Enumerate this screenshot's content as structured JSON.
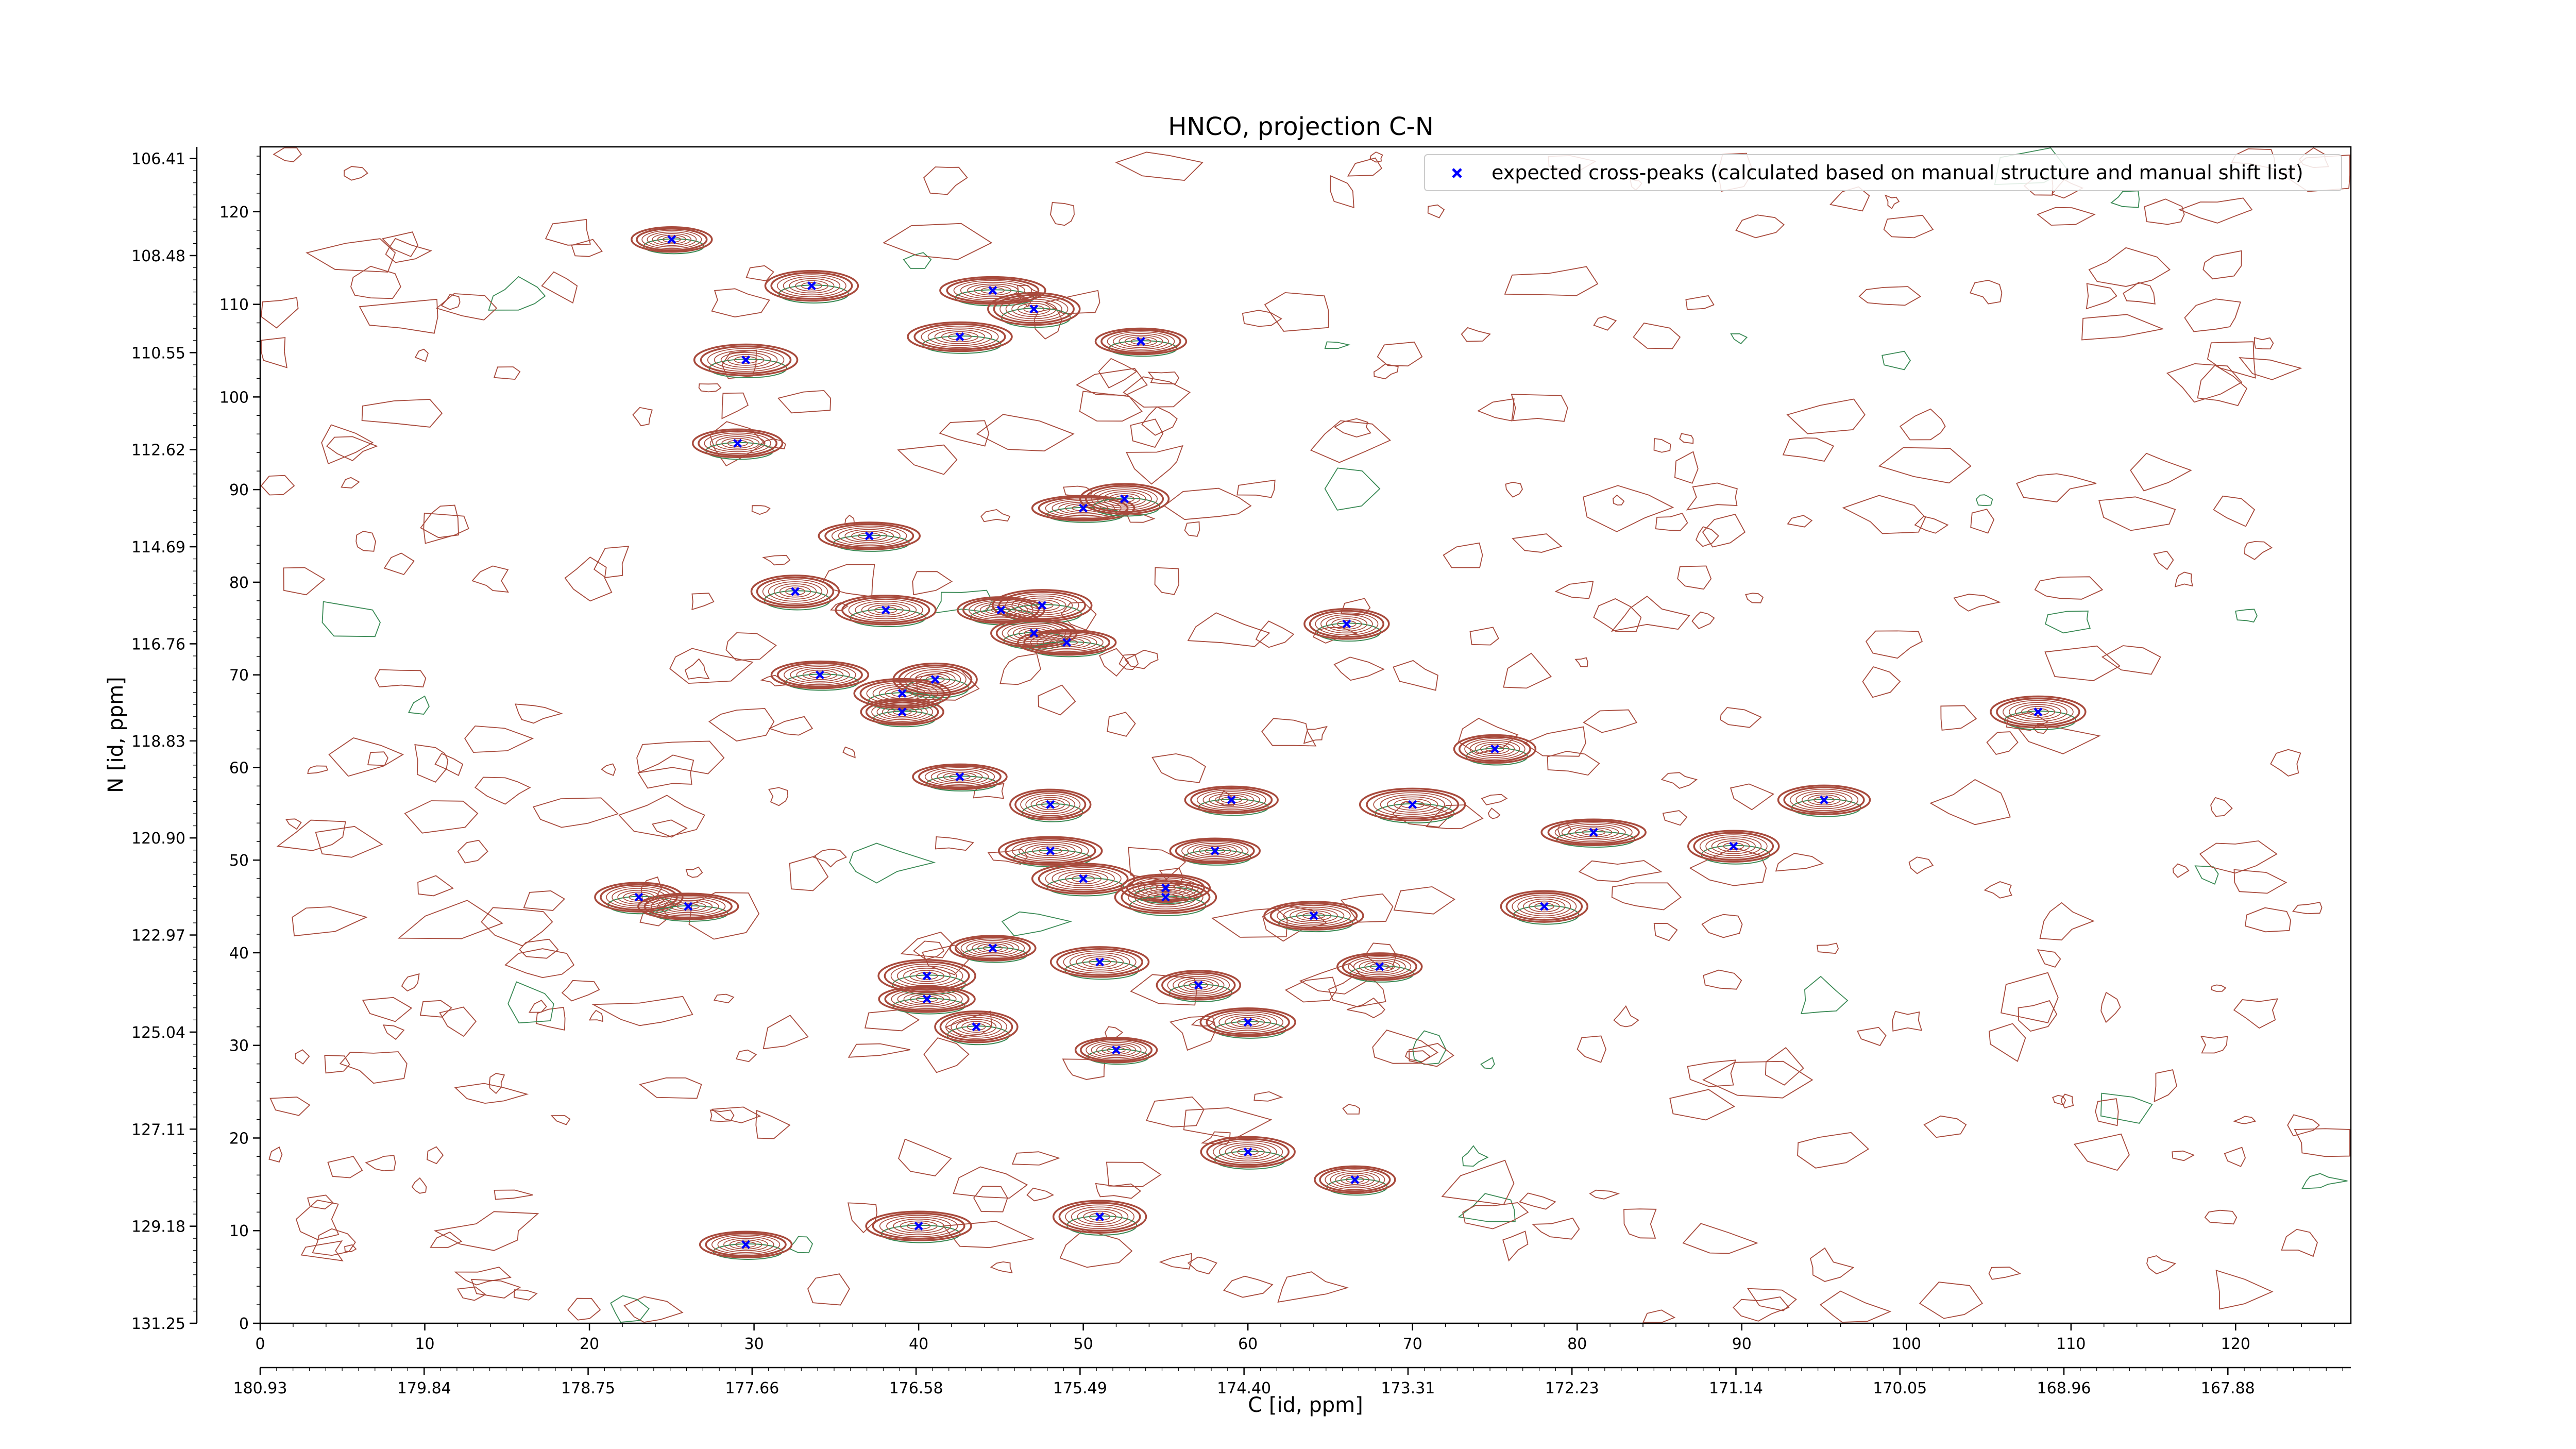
{
  "chart_data": {
    "type": "scatter",
    "title": "HNCO, projection C-N",
    "xlabel": "C [id, ppm]",
    "ylabel": "N [id, ppm]",
    "xlim": [
      0,
      127
    ],
    "ylim": [
      0,
      127
    ],
    "x_ticks": [
      0,
      10,
      20,
      30,
      40,
      50,
      60,
      70,
      80,
      90,
      100,
      110,
      120
    ],
    "y_ticks": [
      0,
      10,
      20,
      30,
      40,
      50,
      60,
      70,
      80,
      90,
      100,
      110,
      120
    ],
    "x_ppm_ticks": [
      "180.93",
      "179.84",
      "178.75",
      "177.66",
      "176.58",
      "175.49",
      "174.40",
      "173.31",
      "172.23",
      "171.14",
      "170.05",
      "168.96",
      "167.88"
    ],
    "y_ppm_ticks": [
      "131.25",
      "129.18",
      "127.11",
      "125.04",
      "122.97",
      "120.90",
      "118.83",
      "116.76",
      "114.69",
      "112.62",
      "110.55",
      "108.48",
      "106.41"
    ],
    "grid": false,
    "legend_position": "top-right",
    "colors": {
      "marker": "#0000ff",
      "positive_contour": "#a84a3c",
      "negative_contour": "#3a8a55",
      "axes": "#000000"
    },
    "series": [
      {
        "name": "expected cross-peaks (calculated based on manual structure and manual shift list)",
        "marker": "x",
        "points": [
          [
            25,
            117
          ],
          [
            33.5,
            112
          ],
          [
            44.5,
            111.5
          ],
          [
            47,
            109.5
          ],
          [
            42.5,
            106.5
          ],
          [
            53.5,
            106
          ],
          [
            29.5,
            104
          ],
          [
            29,
            95
          ],
          [
            50,
            88
          ],
          [
            52.5,
            89
          ],
          [
            37,
            85
          ],
          [
            32.5,
            79
          ],
          [
            38,
            77
          ],
          [
            45,
            77
          ],
          [
            47.5,
            77.5
          ],
          [
            47,
            74.5
          ],
          [
            49,
            73.5
          ],
          [
            66,
            75.5
          ],
          [
            34,
            70
          ],
          [
            41,
            69.5
          ],
          [
            39,
            68
          ],
          [
            39,
            66
          ],
          [
            108,
            66
          ],
          [
            75,
            62
          ],
          [
            42.5,
            59
          ],
          [
            48,
            56
          ],
          [
            59,
            56.5
          ],
          [
            70,
            56
          ],
          [
            95,
            56.5
          ],
          [
            81,
            53
          ],
          [
            89.5,
            51.5
          ],
          [
            48,
            51
          ],
          [
            58,
            51
          ],
          [
            50,
            48
          ],
          [
            55,
            47
          ],
          [
            55,
            46
          ],
          [
            23,
            46
          ],
          [
            26,
            45
          ],
          [
            78,
            45
          ],
          [
            64,
            44
          ],
          [
            44.5,
            40.5
          ],
          [
            51,
            39
          ],
          [
            68,
            38.5
          ],
          [
            40.5,
            37.5
          ],
          [
            57,
            36.5
          ],
          [
            40.5,
            35
          ],
          [
            43.5,
            32
          ],
          [
            60,
            32.5
          ],
          [
            52,
            29.5
          ],
          [
            60,
            18.5
          ],
          [
            66.5,
            15.5
          ],
          [
            51,
            11.5
          ],
          [
            40,
            10.5
          ],
          [
            29.5,
            8.5
          ]
        ]
      }
    ]
  }
}
